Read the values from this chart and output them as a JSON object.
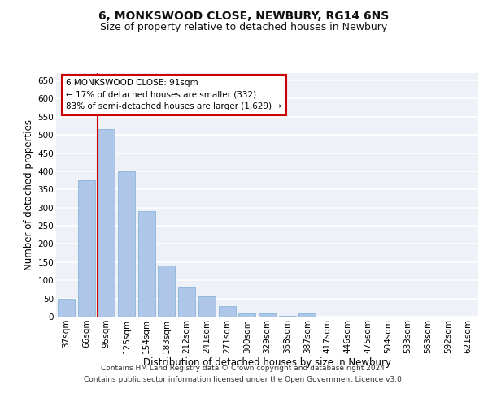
{
  "title_line1": "6, MONKSWOOD CLOSE, NEWBURY, RG14 6NS",
  "title_line2": "Size of property relative to detached houses in Newbury",
  "xlabel": "Distribution of detached houses by size in Newbury",
  "ylabel": "Number of detached properties",
  "categories": [
    "37sqm",
    "66sqm",
    "95sqm",
    "125sqm",
    "154sqm",
    "183sqm",
    "212sqm",
    "241sqm",
    "271sqm",
    "300sqm",
    "329sqm",
    "358sqm",
    "387sqm",
    "417sqm",
    "446sqm",
    "475sqm",
    "504sqm",
    "533sqm",
    "563sqm",
    "592sqm",
    "621sqm"
  ],
  "values": [
    50,
    375,
    515,
    400,
    290,
    140,
    80,
    55,
    28,
    8,
    10,
    2,
    10,
    1,
    1,
    1,
    0,
    1,
    0,
    0,
    1
  ],
  "bar_color": "#aec6e8",
  "bar_edge_color": "#7aadd4",
  "highlight_bar_index": 2,
  "highlight_line_color": "#cc0000",
  "ylim": [
    0,
    670
  ],
  "yticks": [
    0,
    50,
    100,
    150,
    200,
    250,
    300,
    350,
    400,
    450,
    500,
    550,
    600,
    650
  ],
  "annotation_text_line1": "6 MONKSWOOD CLOSE: 91sqm",
  "annotation_text_line2": "← 17% of detached houses are smaller (332)",
  "annotation_text_line3": "83% of semi-detached houses are larger (1,629) →",
  "annotation_box_color": "#ffffff",
  "annotation_box_edge": "#cc0000",
  "footer_line1": "Contains HM Land Registry data © Crown copyright and database right 2024.",
  "footer_line2": "Contains public sector information licensed under the Open Government Licence v3.0.",
  "background_color": "#eef2f8",
  "grid_color": "#ffffff",
  "title_fontsize": 10,
  "subtitle_fontsize": 9,
  "axis_label_fontsize": 8.5,
  "tick_fontsize": 7.5,
  "annotation_fontsize": 7.5,
  "footer_fontsize": 6.5
}
